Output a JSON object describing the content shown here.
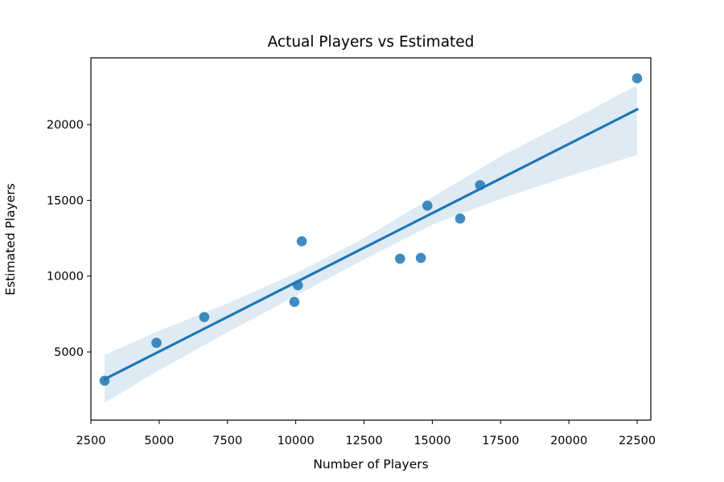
{
  "chart_data": {
    "type": "scatter",
    "title": "Actual Players vs Estimated",
    "xlabel": "Number of Players",
    "ylabel": "Estimated Players",
    "xlim": [
      2500,
      23000
    ],
    "ylim": [
      500,
      24400
    ],
    "xticks": [
      2500,
      5000,
      7500,
      10000,
      12500,
      15000,
      17500,
      20000,
      22500
    ],
    "yticks": [
      5000,
      10000,
      15000,
      20000
    ],
    "grid": false,
    "legend": "none",
    "points": [
      {
        "x": 3000,
        "y": 3100
      },
      {
        "x": 4900,
        "y": 5600
      },
      {
        "x": 6650,
        "y": 7300
      },
      {
        "x": 9950,
        "y": 8300
      },
      {
        "x": 10080,
        "y": 9400
      },
      {
        "x": 10220,
        "y": 12300
      },
      {
        "x": 13820,
        "y": 11150
      },
      {
        "x": 14580,
        "y": 11200
      },
      {
        "x": 14820,
        "y": 14650
      },
      {
        "x": 16020,
        "y": 13800
      },
      {
        "x": 16750,
        "y": 16000
      },
      {
        "x": 22500,
        "y": 23050
      }
    ],
    "regression": {
      "x": [
        3000,
        22500
      ],
      "y": [
        3200,
        21000
      ]
    },
    "confidence_band": {
      "x": [
        3000,
        5000,
        7500,
        10000,
        12500,
        15000,
        17500,
        20000,
        22500
      ],
      "upper": [
        4800,
        6400,
        8200,
        10200,
        12500,
        15200,
        17900,
        20200,
        22600
      ],
      "lower": [
        1650,
        3800,
        6300,
        8700,
        11100,
        13400,
        15100,
        16600,
        18000
      ]
    },
    "colors": {
      "points": "#1f77b4",
      "line": "#1f77b4",
      "band": "#1f77b4"
    }
  }
}
